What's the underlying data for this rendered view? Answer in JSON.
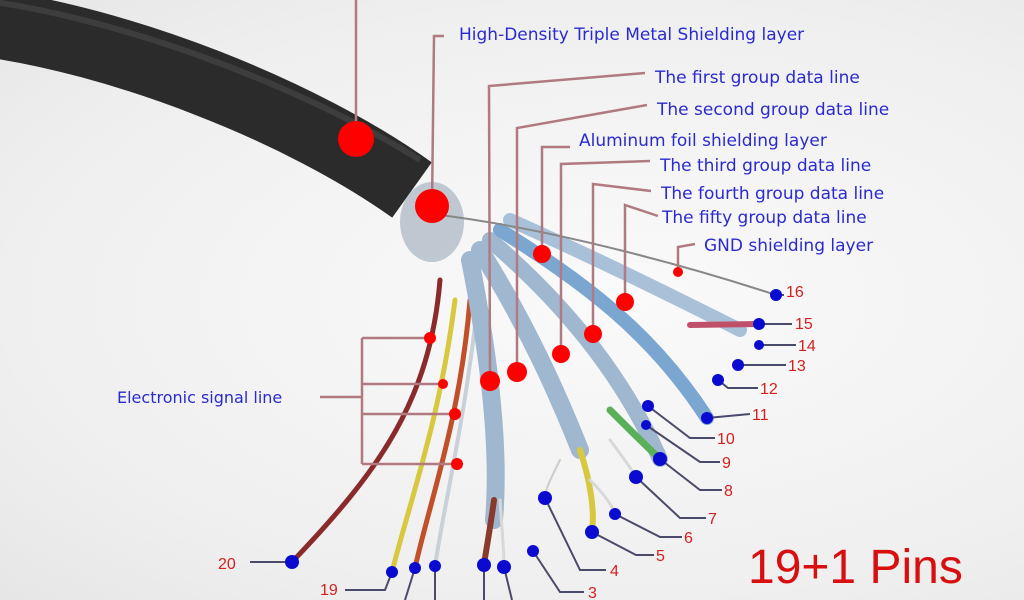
{
  "labels": {
    "shielding": "High-Density Triple Metal Shielding layer",
    "first_group": "The first group data line",
    "second_group": "The second group data line",
    "aluminum": "Aluminum foil shielding layer",
    "third_group": "The third group data line",
    "fourth_group": "The fourth group data line",
    "fifty_group": "The fifty group data line",
    "gnd": "GND shielding layer",
    "signal": "Electronic signal line"
  },
  "pins": [
    "3",
    "4",
    "5",
    "6",
    "7",
    "8",
    "9",
    "10",
    "11",
    "12",
    "13",
    "14",
    "15",
    "16",
    "19",
    "20"
  ],
  "title": "19+1 Pins",
  "colors": {
    "label": "#2a2ad0",
    "pin_label": "#d42020",
    "marker_red": "#ff0000",
    "marker_blue": "#0a0ad0",
    "title": "#d80f0f"
  }
}
